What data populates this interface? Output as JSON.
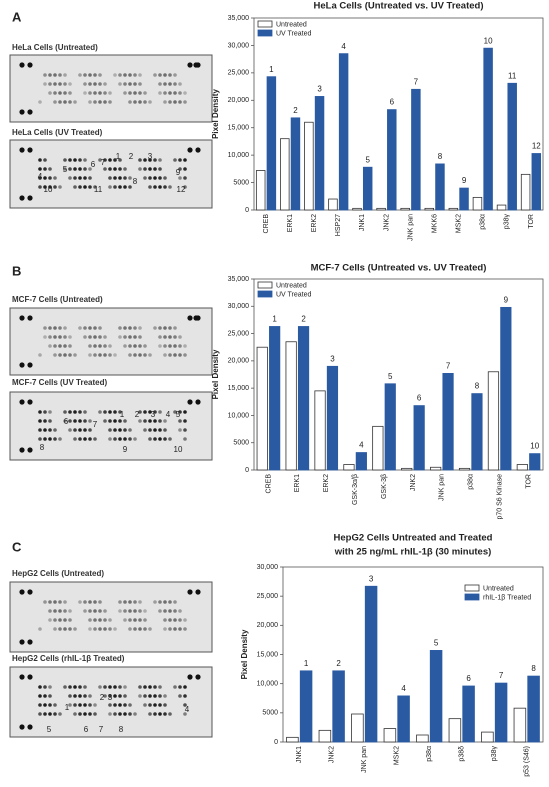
{
  "panels": [
    {
      "letter": "A",
      "blots": [
        {
          "label": "HeLa Cells (Untreated)",
          "annotations": []
        },
        {
          "label": "HeLa Cells (UV Treated)",
          "annotations": [
            "1",
            "2",
            "3",
            "4",
            "5",
            "6",
            "7",
            "8",
            "9",
            "10",
            "11",
            "12"
          ]
        }
      ]
    },
    {
      "letter": "B",
      "blots": [
        {
          "label": "MCF-7 Cells (Untreated)",
          "annotations": []
        },
        {
          "label": "MCF-7 Cells (UV Treated)",
          "annotations": [
            "1",
            "2",
            "3",
            "4",
            "5",
            "6",
            "7",
            "8",
            "9",
            "10"
          ]
        }
      ]
    },
    {
      "letter": "C",
      "blots": [
        {
          "label": "HepG2 Cells (Untreated)",
          "annotations": []
        },
        {
          "label": "HepG2 Cells (rhIL-1β Treated)",
          "annotations": [
            "1",
            "2",
            "3",
            "4",
            "5",
            "6",
            "7",
            "8"
          ]
        }
      ]
    }
  ],
  "chart_data": [
    {
      "type": "bar",
      "title": [
        "HeLa Cells (Untreated vs. UV Treated)"
      ],
      "y_label": "Pixel Density",
      "categories": [
        "CREB",
        "ERK1",
        "ERK2",
        "HSP27",
        "JNK1",
        "JNK2",
        "JNK pan",
        "MKK6",
        "MSK2",
        "p38α",
        "p38γ",
        "TOR"
      ],
      "series": [
        {
          "name": "Untreated",
          "color": "#ffffff",
          "values": [
            7200,
            13000,
            16000,
            2000,
            300,
            300,
            300,
            300,
            300,
            2300,
            900,
            6500
          ]
        },
        {
          "name": "UV Treated",
          "color": "#2a5aa2",
          "values": [
            24300,
            16800,
            20700,
            28500,
            7800,
            18300,
            22000,
            8400,
            4000,
            29500,
            23100,
            10300
          ],
          "bar_labels": [
            "1",
            "2",
            "3",
            "4",
            "5",
            "6",
            "7",
            "8",
            "9",
            "10",
            "11",
            "12"
          ]
        }
      ],
      "ylim": [
        0,
        35000
      ],
      "yticks": [
        0,
        5000,
        {
          "value": 10000,
          "label": "10,000"
        },
        {
          "value": 15000,
          "label": "15,000"
        },
        {
          "value": 20000,
          "label": "20,000"
        },
        {
          "value": 25000,
          "label": "25,000"
        },
        {
          "value": 30000,
          "label": "30,000"
        },
        {
          "value": 35000,
          "label": "35,000"
        }
      ],
      "legend": "upper left"
    },
    {
      "type": "bar",
      "title": [
        "MCF-7 Cells (Untreated vs. UV Treated)"
      ],
      "y_label": "Pixel Density",
      "categories": [
        "CREB",
        "ERK1",
        "ERK2",
        "GSK-3α/β",
        "GSK-3β",
        "JNK2",
        "JNK pan",
        "p38α",
        "p70 S6 Kinase",
        "TOR"
      ],
      "series": [
        {
          "name": "Untreated",
          "color": "#ffffff",
          "values": [
            22500,
            23500,
            14500,
            1000,
            8000,
            300,
            500,
            300,
            18000,
            1000
          ]
        },
        {
          "name": "UV Treated",
          "color": "#2a5aa2",
          "values": [
            26300,
            26300,
            19000,
            3200,
            15800,
            11800,
            17700,
            14000,
            29800,
            3000
          ],
          "bar_labels": [
            "1",
            "2",
            "3",
            "4",
            "5",
            "6",
            "7",
            "8",
            "9",
            "10"
          ]
        }
      ],
      "ylim": [
        0,
        35000
      ],
      "yticks": [
        0,
        5000,
        {
          "value": 10000,
          "label": "10,000"
        },
        {
          "value": 15000,
          "label": "15,000"
        },
        {
          "value": 20000,
          "label": "20,000"
        },
        {
          "value": 25000,
          "label": "25,000"
        },
        {
          "value": 30000,
          "label": "30,000"
        },
        {
          "value": 35000,
          "label": "35,000"
        }
      ],
      "legend": "upper left"
    },
    {
      "type": "bar",
      "title": [
        "HepG2 Cells Untreated and Treated",
        "with 25 ng/mL rhIL-1β (30 minutes)"
      ],
      "y_label": "Pixel Density",
      "categories": [
        "JNK1",
        "JNK2",
        "JNK pan",
        "MSK2",
        "p38α",
        "p38δ",
        "p38γ",
        "p53 (S46)"
      ],
      "series": [
        {
          "name": "Untreated",
          "color": "#ffffff",
          "values": [
            800,
            2000,
            4800,
            2300,
            1200,
            4000,
            1700,
            5800
          ]
        },
        {
          "name": "rhIL-1β Treated",
          "color": "#2a5aa2",
          "values": [
            12200,
            12200,
            26700,
            7900,
            15700,
            9600,
            10100,
            11300
          ],
          "bar_labels": [
            "1",
            "2",
            "3",
            "4",
            "5",
            "6",
            "7",
            "8"
          ]
        }
      ],
      "ylim": [
        0,
        30000
      ],
      "yticks": [
        0,
        5000,
        {
          "value": 10000,
          "label": "10,000"
        },
        {
          "value": 15000,
          "label": "15,000"
        },
        {
          "value": 20000,
          "label": "20,000"
        },
        {
          "value": 25000,
          "label": "25,000"
        },
        {
          "value": 30000,
          "label": "30,000"
        }
      ],
      "legend": "upper right"
    }
  ]
}
